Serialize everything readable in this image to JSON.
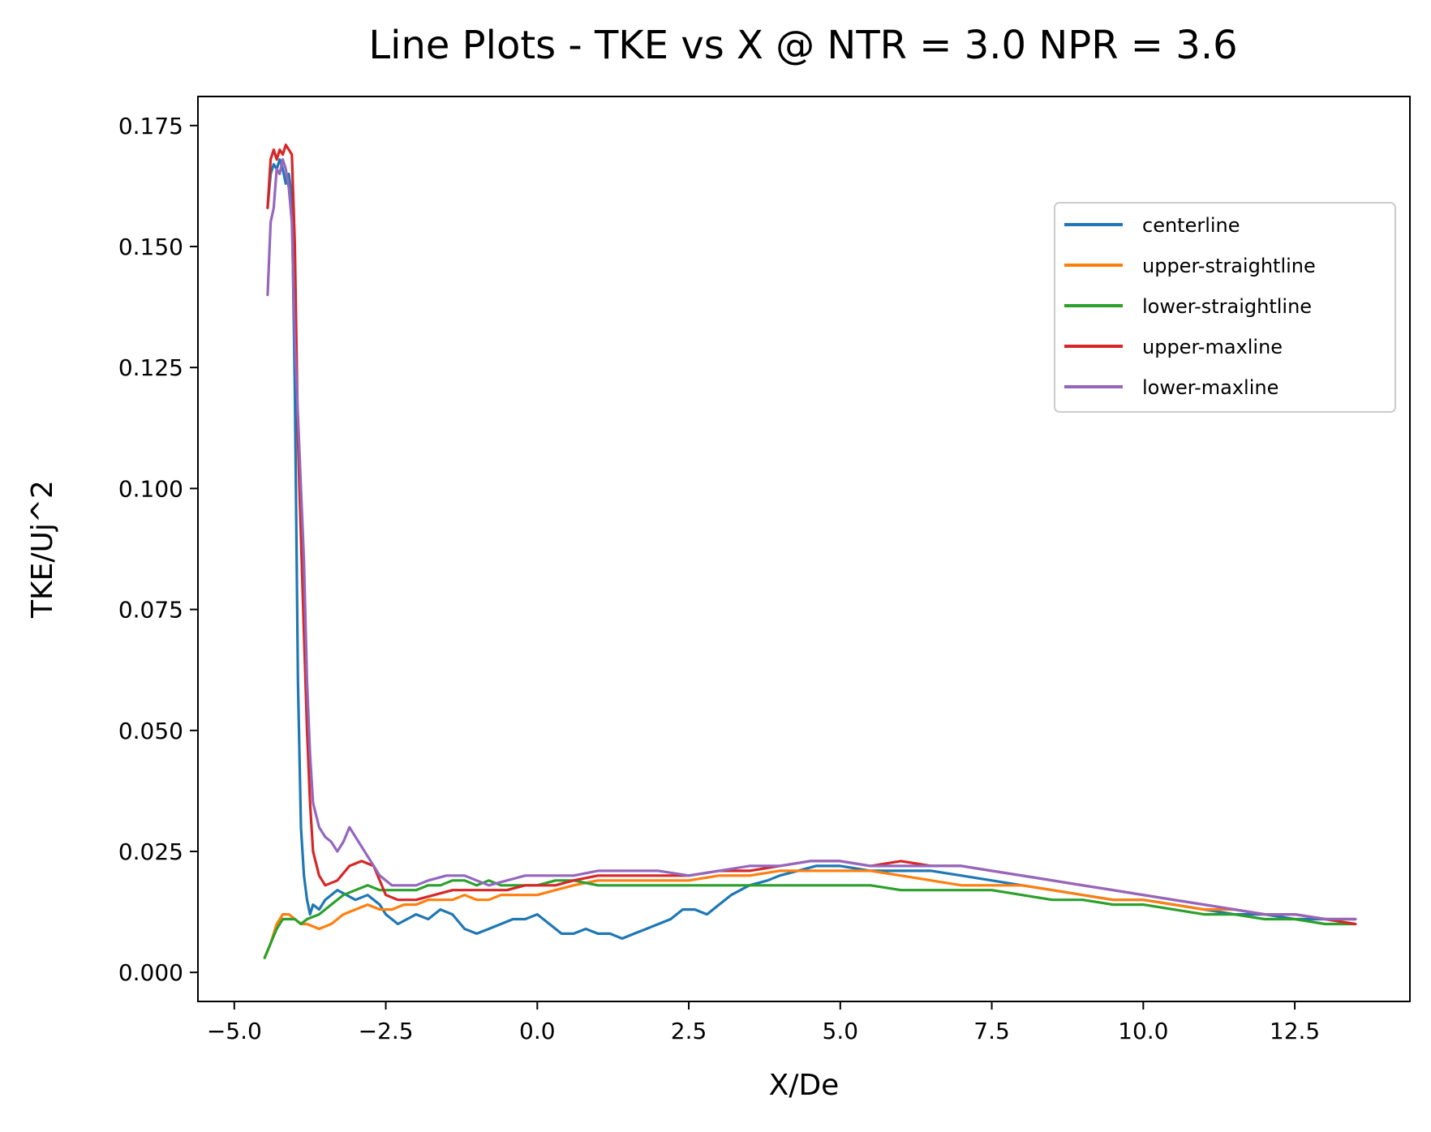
{
  "chart_data": {
    "type": "line",
    "title": "Line Plots - TKE vs X @ NTR = 3.0 NPR = 3.6",
    "xlabel": "X/De",
    "ylabel": "TKE/Uj^2",
    "xlim": [
      -5.6,
      14.4
    ],
    "ylim": [
      -0.006,
      0.181
    ],
    "xticks": [
      -5.0,
      -2.5,
      0.0,
      2.5,
      5.0,
      7.5,
      10.0,
      12.5
    ],
    "xtick_labels": [
      "−5.0",
      "−2.5",
      "0.0",
      "2.5",
      "5.0",
      "7.5",
      "10.0",
      "12.5"
    ],
    "yticks": [
      0.0,
      0.025,
      0.05,
      0.075,
      0.1,
      0.125,
      0.15,
      0.175
    ],
    "ytick_labels": [
      "0.000",
      "0.025",
      "0.050",
      "0.075",
      "0.100",
      "0.125",
      "0.150",
      "0.175"
    ],
    "grid": false,
    "legend_position": "upper-right",
    "series": [
      {
        "name": "centerline",
        "color": "#1f77b4",
        "x": [
          -4.45,
          -4.4,
          -4.35,
          -4.3,
          -4.25,
          -4.2,
          -4.15,
          -4.1,
          -4.05,
          -4.0,
          -3.95,
          -3.9,
          -3.85,
          -3.8,
          -3.75,
          -3.7,
          -3.6,
          -3.5,
          -3.3,
          -3.0,
          -2.8,
          -2.6,
          -2.5,
          -2.3,
          -2.0,
          -1.8,
          -1.6,
          -1.4,
          -1.2,
          -1.0,
          -0.8,
          -0.6,
          -0.4,
          -0.2,
          0.0,
          0.2,
          0.4,
          0.6,
          0.8,
          1.0,
          1.2,
          1.4,
          1.6,
          1.8,
          2.0,
          2.2,
          2.4,
          2.6,
          2.8,
          3.0,
          3.2,
          3.5,
          3.8,
          4.0,
          4.3,
          4.6,
          5.0,
          5.5,
          6.0,
          6.5,
          7.0,
          7.5,
          8.0,
          8.5,
          9.0,
          9.5,
          10.0,
          10.5,
          11.0,
          11.5,
          12.0,
          12.5,
          13.0,
          13.5
        ],
        "y": [
          0.158,
          0.165,
          0.167,
          0.166,
          0.168,
          0.166,
          0.163,
          0.165,
          0.16,
          0.12,
          0.06,
          0.03,
          0.02,
          0.015,
          0.012,
          0.014,
          0.013,
          0.015,
          0.017,
          0.015,
          0.016,
          0.014,
          0.012,
          0.01,
          0.012,
          0.011,
          0.013,
          0.012,
          0.009,
          0.008,
          0.009,
          0.01,
          0.011,
          0.011,
          0.012,
          0.01,
          0.008,
          0.008,
          0.009,
          0.008,
          0.008,
          0.007,
          0.008,
          0.009,
          0.01,
          0.011,
          0.013,
          0.013,
          0.012,
          0.014,
          0.016,
          0.018,
          0.019,
          0.02,
          0.021,
          0.022,
          0.022,
          0.021,
          0.021,
          0.021,
          0.02,
          0.019,
          0.018,
          0.017,
          0.016,
          0.015,
          0.015,
          0.014,
          0.013,
          0.012,
          0.012,
          0.011,
          0.011,
          0.011
        ]
      },
      {
        "name": "upper-straightline",
        "color": "#ff7f0e",
        "x": [
          -4.5,
          -4.4,
          -4.3,
          -4.2,
          -4.1,
          -4.0,
          -3.9,
          -3.8,
          -3.6,
          -3.4,
          -3.2,
          -3.0,
          -2.8,
          -2.6,
          -2.4,
          -2.2,
          -2.0,
          -1.8,
          -1.6,
          -1.4,
          -1.2,
          -1.0,
          -0.8,
          -0.6,
          -0.4,
          -0.2,
          0.0,
          0.3,
          0.6,
          1.0,
          1.5,
          2.0,
          2.5,
          3.0,
          3.5,
          4.0,
          4.5,
          5.0,
          5.5,
          6.0,
          6.5,
          7.0,
          7.5,
          8.0,
          8.5,
          9.0,
          9.5,
          10.0,
          10.5,
          11.0,
          11.5,
          12.0,
          12.5,
          13.0,
          13.5
        ],
        "y": [
          0.003,
          0.006,
          0.01,
          0.012,
          0.012,
          0.011,
          0.01,
          0.01,
          0.009,
          0.01,
          0.012,
          0.013,
          0.014,
          0.013,
          0.013,
          0.014,
          0.014,
          0.015,
          0.015,
          0.015,
          0.016,
          0.015,
          0.015,
          0.016,
          0.016,
          0.016,
          0.016,
          0.017,
          0.018,
          0.019,
          0.019,
          0.019,
          0.019,
          0.02,
          0.02,
          0.021,
          0.021,
          0.021,
          0.021,
          0.02,
          0.019,
          0.018,
          0.018,
          0.018,
          0.017,
          0.016,
          0.015,
          0.015,
          0.014,
          0.013,
          0.013,
          0.012,
          0.012,
          0.011,
          0.011
        ]
      },
      {
        "name": "lower-straightline",
        "color": "#2ca02c",
        "x": [
          -4.5,
          -4.4,
          -4.3,
          -4.2,
          -4.1,
          -4.0,
          -3.9,
          -3.8,
          -3.6,
          -3.4,
          -3.2,
          -3.0,
          -2.8,
          -2.6,
          -2.4,
          -2.2,
          -2.0,
          -1.8,
          -1.6,
          -1.4,
          -1.2,
          -1.0,
          -0.8,
          -0.6,
          -0.4,
          -0.2,
          0.0,
          0.3,
          0.6,
          1.0,
          1.5,
          2.0,
          2.5,
          3.0,
          3.5,
          4.0,
          4.5,
          5.0,
          5.5,
          6.0,
          6.5,
          7.0,
          7.5,
          8.0,
          8.5,
          9.0,
          9.5,
          10.0,
          10.5,
          11.0,
          11.5,
          12.0,
          12.5,
          13.0,
          13.5
        ],
        "y": [
          0.003,
          0.006,
          0.009,
          0.011,
          0.011,
          0.011,
          0.01,
          0.011,
          0.012,
          0.014,
          0.016,
          0.017,
          0.018,
          0.017,
          0.017,
          0.017,
          0.017,
          0.018,
          0.018,
          0.019,
          0.019,
          0.018,
          0.019,
          0.018,
          0.018,
          0.018,
          0.018,
          0.019,
          0.019,
          0.018,
          0.018,
          0.018,
          0.018,
          0.018,
          0.018,
          0.018,
          0.018,
          0.018,
          0.018,
          0.017,
          0.017,
          0.017,
          0.017,
          0.016,
          0.015,
          0.015,
          0.014,
          0.014,
          0.013,
          0.012,
          0.012,
          0.011,
          0.011,
          0.01,
          0.01
        ]
      },
      {
        "name": "upper-maxline",
        "color": "#d62728",
        "x": [
          -4.45,
          -4.4,
          -4.35,
          -4.3,
          -4.25,
          -4.2,
          -4.15,
          -4.1,
          -4.05,
          -4.0,
          -3.95,
          -3.9,
          -3.85,
          -3.8,
          -3.75,
          -3.7,
          -3.6,
          -3.5,
          -3.3,
          -3.1,
          -2.9,
          -2.7,
          -2.5,
          -2.3,
          -2.0,
          -1.7,
          -1.4,
          -1.1,
          -0.8,
          -0.5,
          -0.2,
          0.0,
          0.3,
          0.6,
          1.0,
          1.5,
          2.0,
          2.5,
          3.0,
          3.5,
          4.0,
          4.5,
          5.0,
          5.5,
          6.0,
          6.5,
          7.0,
          7.5,
          8.0,
          8.5,
          9.0,
          9.5,
          10.0,
          10.5,
          11.0,
          11.5,
          12.0,
          12.5,
          13.0,
          13.5
        ],
        "y": [
          0.158,
          0.168,
          0.17,
          0.168,
          0.17,
          0.169,
          0.171,
          0.17,
          0.169,
          0.15,
          0.11,
          0.09,
          0.07,
          0.05,
          0.035,
          0.025,
          0.02,
          0.018,
          0.019,
          0.022,
          0.023,
          0.022,
          0.016,
          0.015,
          0.015,
          0.016,
          0.017,
          0.017,
          0.017,
          0.017,
          0.018,
          0.018,
          0.018,
          0.019,
          0.02,
          0.02,
          0.02,
          0.02,
          0.021,
          0.021,
          0.022,
          0.023,
          0.023,
          0.022,
          0.023,
          0.022,
          0.022,
          0.021,
          0.02,
          0.019,
          0.018,
          0.017,
          0.016,
          0.015,
          0.014,
          0.013,
          0.012,
          0.012,
          0.011,
          0.01
        ]
      },
      {
        "name": "lower-maxline",
        "color": "#9467bd",
        "x": [
          -4.45,
          -4.4,
          -4.35,
          -4.3,
          -4.25,
          -4.2,
          -4.15,
          -4.1,
          -4.05,
          -4.0,
          -3.95,
          -3.9,
          -3.85,
          -3.8,
          -3.75,
          -3.7,
          -3.6,
          -3.5,
          -3.4,
          -3.3,
          -3.2,
          -3.1,
          -3.0,
          -2.9,
          -2.8,
          -2.6,
          -2.4,
          -2.2,
          -2.0,
          -1.8,
          -1.5,
          -1.2,
          -1.0,
          -0.8,
          -0.5,
          -0.2,
          0.0,
          0.3,
          0.6,
          1.0,
          1.5,
          2.0,
          2.5,
          3.0,
          3.5,
          4.0,
          4.5,
          5.0,
          5.5,
          6.0,
          6.5,
          7.0,
          7.5,
          8.0,
          8.5,
          9.0,
          9.5,
          10.0,
          10.5,
          11.0,
          11.5,
          12.0,
          12.5,
          13.0,
          13.5
        ],
        "y": [
          0.14,
          0.155,
          0.158,
          0.166,
          0.165,
          0.168,
          0.166,
          0.162,
          0.155,
          0.13,
          0.115,
          0.1,
          0.085,
          0.06,
          0.045,
          0.035,
          0.03,
          0.028,
          0.027,
          0.025,
          0.027,
          0.03,
          0.028,
          0.026,
          0.024,
          0.02,
          0.018,
          0.018,
          0.018,
          0.019,
          0.02,
          0.02,
          0.019,
          0.018,
          0.019,
          0.02,
          0.02,
          0.02,
          0.02,
          0.021,
          0.021,
          0.021,
          0.02,
          0.021,
          0.022,
          0.022,
          0.023,
          0.023,
          0.022,
          0.022,
          0.022,
          0.022,
          0.021,
          0.02,
          0.019,
          0.018,
          0.017,
          0.016,
          0.015,
          0.014,
          0.013,
          0.012,
          0.012,
          0.011,
          0.011
        ]
      }
    ]
  }
}
